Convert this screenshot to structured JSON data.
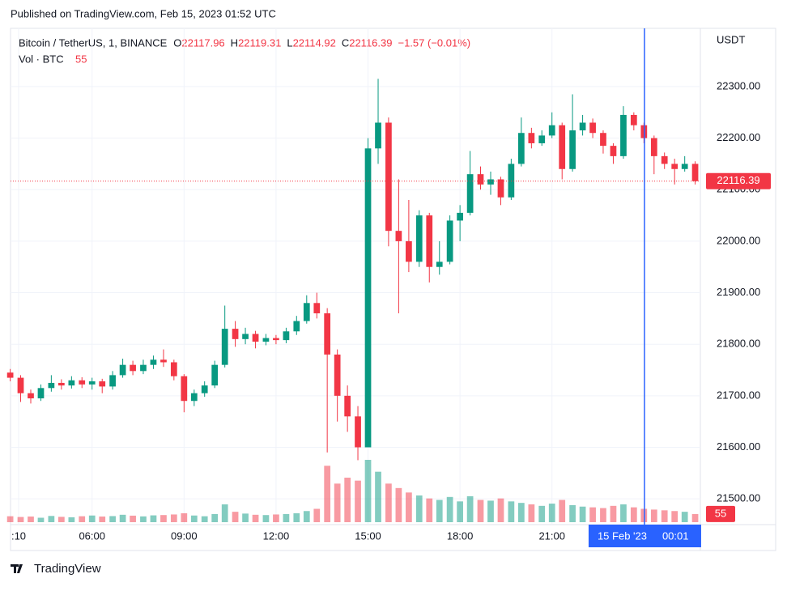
{
  "header": {
    "published": "Published on TradingView.com, Feb 15, 2023 01:52 UTC"
  },
  "footer": {
    "brand": "TradingView"
  },
  "chart_data": {
    "type": "candlestick",
    "symbol": "Bitcoin / TetherUS, 1, BINANCE",
    "ohlc_labels": [
      "O",
      "H",
      "L",
      "C"
    ],
    "ohlc_values": [
      22117.96,
      22119.31,
      22114.92,
      22116.39
    ],
    "change": "−1.57 (−0.01%)",
    "volume_label": "Vol · BTC",
    "volume_value": 55,
    "last_price": 22116.39,
    "y_axis_unit": "USDT",
    "up_color": "#089981",
    "down_color": "#f23645",
    "grid": true,
    "crosshair": {
      "x": 24.0167,
      "date_label": "15 Feb '23",
      "time_label": "00:01",
      "color": "#2962ff"
    },
    "xlim": [
      3.34,
      25.84
    ],
    "xticks": [
      {
        "value": 3.1667,
        "label": ":10"
      },
      {
        "value": 6,
        "label": "06:00"
      },
      {
        "value": 9,
        "label": "09:00"
      },
      {
        "value": 12,
        "label": "12:00"
      },
      {
        "value": 15,
        "label": "15:00"
      },
      {
        "value": 18,
        "label": "18:00"
      },
      {
        "value": 21,
        "label": "21:00"
      }
    ],
    "ylim": [
      21450,
      22413
    ],
    "yticks": [
      {
        "value": 21500,
        "label": "21500.00"
      },
      {
        "value": 21600,
        "label": "21600.00"
      },
      {
        "value": 21700,
        "label": "21700.00"
      },
      {
        "value": 21800,
        "label": "21800.00"
      },
      {
        "value": 21900,
        "label": "21900.00"
      },
      {
        "value": 22000,
        "label": "22000.00"
      },
      {
        "value": 22100,
        "label": "22100.00"
      },
      {
        "value": 22200,
        "label": "22200.00"
      },
      {
        "value": 22300,
        "label": "22300.00"
      }
    ],
    "vlim": [
      0,
      600
    ],
    "x": [
      3.33,
      3.67,
      4,
      4.33,
      4.67,
      5,
      5.33,
      5.67,
      6,
      6.33,
      6.67,
      7,
      7.33,
      7.67,
      8,
      8.33,
      8.67,
      9,
      9.33,
      9.67,
      10,
      10.33,
      10.67,
      11,
      11.33,
      11.67,
      12,
      12.33,
      12.67,
      13,
      13.33,
      13.67,
      14,
      14.33,
      14.67,
      15,
      15.33,
      15.67,
      16,
      16.33,
      16.67,
      17,
      17.33,
      17.67,
      18,
      18.33,
      18.67,
      19,
      19.33,
      19.67,
      20,
      20.33,
      20.67,
      21,
      21.33,
      21.67,
      22,
      22.33,
      22.67,
      23,
      23.33,
      23.67,
      24,
      24.33,
      24.67,
      25,
      25.33,
      25.67
    ],
    "open": [
      21745,
      21735,
      21705,
      21695,
      21715,
      21725,
      21720,
      21730,
      21722,
      21728,
      21718,
      21740,
      21760,
      21748,
      21760,
      21770,
      21765,
      21738,
      21690,
      21705,
      21720,
      21760,
      21830,
      21810,
      21820,
      21805,
      21812,
      21808,
      21825,
      21845,
      21880,
      21860,
      21780,
      21700,
      21660,
      21600,
      22180,
      22230,
      22020,
      22000,
      21960,
      22050,
      21950,
      21960,
      22040,
      22055,
      22130,
      22110,
      22120,
      22085,
      22150,
      22210,
      22190,
      22205,
      22225,
      22140,
      22215,
      22230,
      22210,
      22185,
      22165,
      22245,
      22225,
      22200,
      22165,
      22150,
      22140,
      22150
    ],
    "high": [
      21752,
      21740,
      21712,
      21722,
      21740,
      21732,
      21738,
      21736,
      21735,
      21733,
      21748,
      21772,
      21768,
      21770,
      21778,
      21790,
      21770,
      21742,
      21712,
      21728,
      21768,
      21875,
      21845,
      21832,
      21826,
      21820,
      21818,
      21832,
      21855,
      21895,
      21900,
      21870,
      21790,
      21720,
      21680,
      22200,
      22315,
      22240,
      22120,
      22080,
      22060,
      22055,
      22000,
      22050,
      22070,
      22175,
      22145,
      22135,
      22125,
      22160,
      22240,
      22220,
      22215,
      22250,
      22230,
      22285,
      22245,
      22238,
      22215,
      22190,
      22262,
      22250,
      22230,
      22205,
      22172,
      22160,
      22165,
      22155
    ],
    "low": [
      21728,
      21688,
      21685,
      21690,
      21708,
      21712,
      21714,
      21715,
      21712,
      21705,
      21712,
      21735,
      21740,
      21742,
      21752,
      21756,
      21730,
      21668,
      21680,
      21698,
      21715,
      21755,
      21795,
      21800,
      21792,
      21798,
      21800,
      21802,
      21818,
      21840,
      21850,
      21590,
      21650,
      21630,
      21575,
      21600,
      22150,
      21990,
      21860,
      21940,
      21950,
      21920,
      21935,
      21955,
      22000,
      22050,
      22100,
      22090,
      22070,
      22080,
      22145,
      22180,
      22185,
      22200,
      22120,
      22135,
      22205,
      22200,
      22170,
      22150,
      22160,
      22215,
      22190,
      22130,
      22140,
      22110,
      22135,
      22110
    ],
    "close": [
      21735,
      21705,
      21695,
      21715,
      21725,
      21720,
      21730,
      21722,
      21728,
      21718,
      21740,
      21760,
      21748,
      21760,
      21770,
      21765,
      21738,
      21690,
      21705,
      21720,
      21760,
      21830,
      21810,
      21820,
      21805,
      21812,
      21808,
      21825,
      21845,
      21880,
      21860,
      21780,
      21700,
      21660,
      21600,
      22180,
      22230,
      22020,
      22000,
      21960,
      22050,
      21950,
      21960,
      22040,
      22055,
      22130,
      22110,
      22120,
      22085,
      22150,
      22210,
      22190,
      22205,
      22225,
      22140,
      22215,
      22230,
      22210,
      22185,
      22165,
      22245,
      22225,
      22200,
      22165,
      22150,
      22140,
      22150,
      22116.39
    ],
    "volume": [
      40,
      35,
      38,
      30,
      42,
      36,
      33,
      40,
      45,
      38,
      41,
      50,
      44,
      39,
      46,
      48,
      52,
      60,
      45,
      40,
      55,
      120,
      70,
      58,
      50,
      48,
      52,
      55,
      60,
      75,
      90,
      380,
      260,
      300,
      280,
      420,
      340,
      260,
      230,
      200,
      180,
      160,
      150,
      170,
      140,
      175,
      150,
      145,
      160,
      140,
      130,
      120,
      110,
      125,
      150,
      115,
      105,
      100,
      95,
      110,
      120,
      100,
      90,
      85,
      80,
      75,
      70,
      55
    ]
  }
}
